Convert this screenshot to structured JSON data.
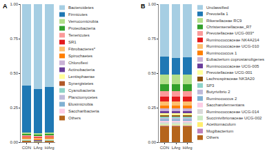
{
  "chart_data": [
    {
      "type": "bar",
      "title": "A",
      "stacked": true,
      "categories": [
        "CON",
        "LArg",
        "HArg"
      ],
      "ylim": [
        0,
        1
      ],
      "yticks": [
        {
          "value": 0,
          "label": "0.00"
        },
        {
          "value": 0.25,
          "label": "0.25"
        },
        {
          "value": 0.5,
          "label": "0.50"
        },
        {
          "value": 0.75,
          "label": "0.75"
        },
        {
          "value": 1,
          "label": "1.00"
        }
      ],
      "series": [
        {
          "name": "Bacteroidetes",
          "color": "#a6cee3",
          "values": [
            0.59,
            0.615,
            0.6
          ]
        },
        {
          "name": "Firmicutes",
          "color": "#1f78b4",
          "values": [
            0.34,
            0.32,
            0.33
          ]
        },
        {
          "name": "Verrucomicrobia",
          "color": "#b2df8a",
          "values": [
            0.012,
            0.012,
            0.012
          ]
        },
        {
          "name": "Proteobacteria",
          "color": "#33a02c",
          "values": [
            0.01,
            0.01,
            0.01
          ]
        },
        {
          "name": "Tenericutes",
          "color": "#fb9a99",
          "values": [
            0.008,
            0.008,
            0.008
          ]
        },
        {
          "name": "SR1",
          "color": "#e31a1c",
          "values": [
            0.006,
            0.006,
            0.006
          ]
        },
        {
          "name": "Fibrobacteres*",
          "color": "#fdbf6f",
          "values": [
            0.006,
            0.007,
            0.006
          ]
        },
        {
          "name": "Spirochaetes",
          "color": "#ff7f00",
          "values": [
            0.005,
            0.005,
            0.005
          ]
        },
        {
          "name": "Chloroflexi",
          "color": "#cab2d6",
          "values": [
            0.002,
            0.002,
            0.002
          ]
        },
        {
          "name": "Actinobacteria",
          "color": "#6a3d9a",
          "values": [
            0.003,
            0.003,
            0.003
          ]
        },
        {
          "name": "Lentisphaerae",
          "color": "#ffff99",
          "values": [
            0.002,
            0.002,
            0.002
          ]
        },
        {
          "name": "Synergistetes",
          "color": "#b15928",
          "values": [
            0.002,
            0.002,
            0.002
          ]
        },
        {
          "name": "Cyanobacteria",
          "color": "#8dd3c7",
          "values": [
            0.002,
            0.001,
            0.002
          ]
        },
        {
          "name": "Planctomycetes",
          "color": "#bebada",
          "values": [
            0.001,
            0.001,
            0.001
          ]
        },
        {
          "name": "Elusimicrobia",
          "color": "#80b1d3",
          "values": [
            0.001,
            0.001,
            0.001
          ]
        },
        {
          "name": "Saccharibacteria",
          "color": "#fccde5",
          "values": [
            0.001,
            0.001,
            0.001
          ]
        },
        {
          "name": "Others",
          "color": "#b5651d",
          "values": [
            0.009,
            0.004,
            0.009
          ]
        }
      ]
    },
    {
      "type": "bar",
      "title": "B",
      "stacked": true,
      "categories": [
        "CON",
        "LArg",
        "HArg"
      ],
      "ylim": [
        0,
        1
      ],
      "yticks": [
        {
          "value": 0,
          "label": "0.00"
        },
        {
          "value": 0.25,
          "label": "0.25"
        },
        {
          "value": 0.5,
          "label": "0.50"
        },
        {
          "value": 0.75,
          "label": "0.75"
        },
        {
          "value": 1,
          "label": "1.00"
        }
      ],
      "series": [
        {
          "name": "Unclassified",
          "color": "#a6cee3",
          "values": [
            0.38,
            0.39,
            0.385
          ]
        },
        {
          "name": "Prevotella 1",
          "color": "#1f78b4",
          "values": [
            0.13,
            0.12,
            0.125
          ]
        },
        {
          "name": "Rikenellaceae RC9",
          "color": "#b2df8a",
          "values": [
            0.07,
            0.07,
            0.07
          ]
        },
        {
          "name": "Christensenellaceae_R7",
          "color": "#33a02c",
          "values": [
            0.05,
            0.05,
            0.05
          ]
        },
        {
          "name": "Prevotellaceae UCG-003*",
          "color": "#fb9a99",
          "values": [
            0.04,
            0.04,
            0.04
          ]
        },
        {
          "name": "Ruminococcaceae NK4A214",
          "color": "#e31a1c",
          "values": [
            0.035,
            0.035,
            0.035
          ]
        },
        {
          "name": "Ruminococcaceae UCG-010",
          "color": "#fdbf6f",
          "values": [
            0.03,
            0.03,
            0.03
          ]
        },
        {
          "name": "Ruminococcus 1",
          "color": "#ff7f00",
          "values": [
            0.02,
            0.02,
            0.02
          ]
        },
        {
          "name": "Eubacterium coprostanoligenes",
          "color": "#cab2d6",
          "values": [
            0.02,
            0.02,
            0.02
          ]
        },
        {
          "name": "Ruminococcaceae UCG-005",
          "color": "#6a3d9a",
          "values": [
            0.015,
            0.015,
            0.015
          ]
        },
        {
          "name": "Prevotellaceae UCG-001",
          "color": "#ffff99",
          "values": [
            0.015,
            0.015,
            0.015
          ]
        },
        {
          "name": "Lachnospiraceae NK3A20",
          "color": "#8c510a",
          "values": [
            0.01,
            0.01,
            0.01
          ]
        },
        {
          "name": "SP3",
          "color": "#8dd3c7",
          "values": [
            0.01,
            0.01,
            0.01
          ]
        },
        {
          "name": "Butyrivibrio 2",
          "color": "#bebada",
          "values": [
            0.01,
            0.01,
            0.01
          ]
        },
        {
          "name": "Ruminococcus 2",
          "color": "#80b1d3",
          "values": [
            0.01,
            0.01,
            0.01
          ]
        },
        {
          "name": "Saccharofermentans",
          "color": "#fccde5",
          "values": [
            0.01,
            0.01,
            0.01
          ]
        },
        {
          "name": "Ruminococcaceae UCG-014",
          "color": "#d9d9d9",
          "values": [
            0.01,
            0.01,
            0.01
          ]
        },
        {
          "name": "Succinivibrionaceae UCG-002",
          "color": "#ccebc5",
          "values": [
            0.008,
            0.008,
            0.008
          ]
        },
        {
          "name": "Acetitomaculum",
          "color": "#ffed6f",
          "values": [
            0.007,
            0.007,
            0.007
          ]
        },
        {
          "name": "Mogibacterium",
          "color": "#bc80bd",
          "values": [
            0.006,
            0.006,
            0.006
          ]
        },
        {
          "name": "Others",
          "color": "#b5651d",
          "values": [
            0.114,
            0.114,
            0.114
          ]
        }
      ]
    }
  ]
}
